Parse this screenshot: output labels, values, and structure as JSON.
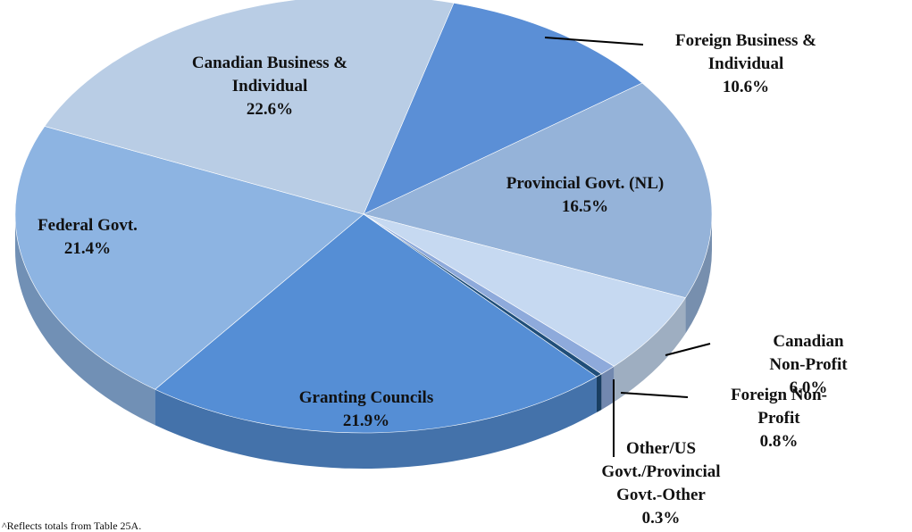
{
  "chart_data": {
    "type": "pie",
    "categories": [
      "Foreign Business &\nIndividual",
      "Provincial Govt. (NL)",
      "Canadian Non-Profit",
      "Foreign Non-Profit",
      "Other/US\nGovt./Provincial\nGovt.-Other",
      "Granting Councils",
      "Federal Govt.",
      "Canadian Business &\nIndividual"
    ],
    "values": [
      10.6,
      16.5,
      6.0,
      0.8,
      0.3,
      21.9,
      21.4,
      22.6
    ],
    "value_labels": [
      "10.6%",
      "16.5%",
      "6.0%",
      "0.8%",
      "0.3%",
      "21.9%",
      "21.4%",
      "22.6%"
    ],
    "colors": [
      "#5b8fd6",
      "#95b3d9",
      "#c6d9f1",
      "#8eaadb",
      "#1f4e79",
      "#558ed5",
      "#8db4e2",
      "#b9cde5"
    ],
    "footnote": "^Reflects totals from Table 25A."
  }
}
